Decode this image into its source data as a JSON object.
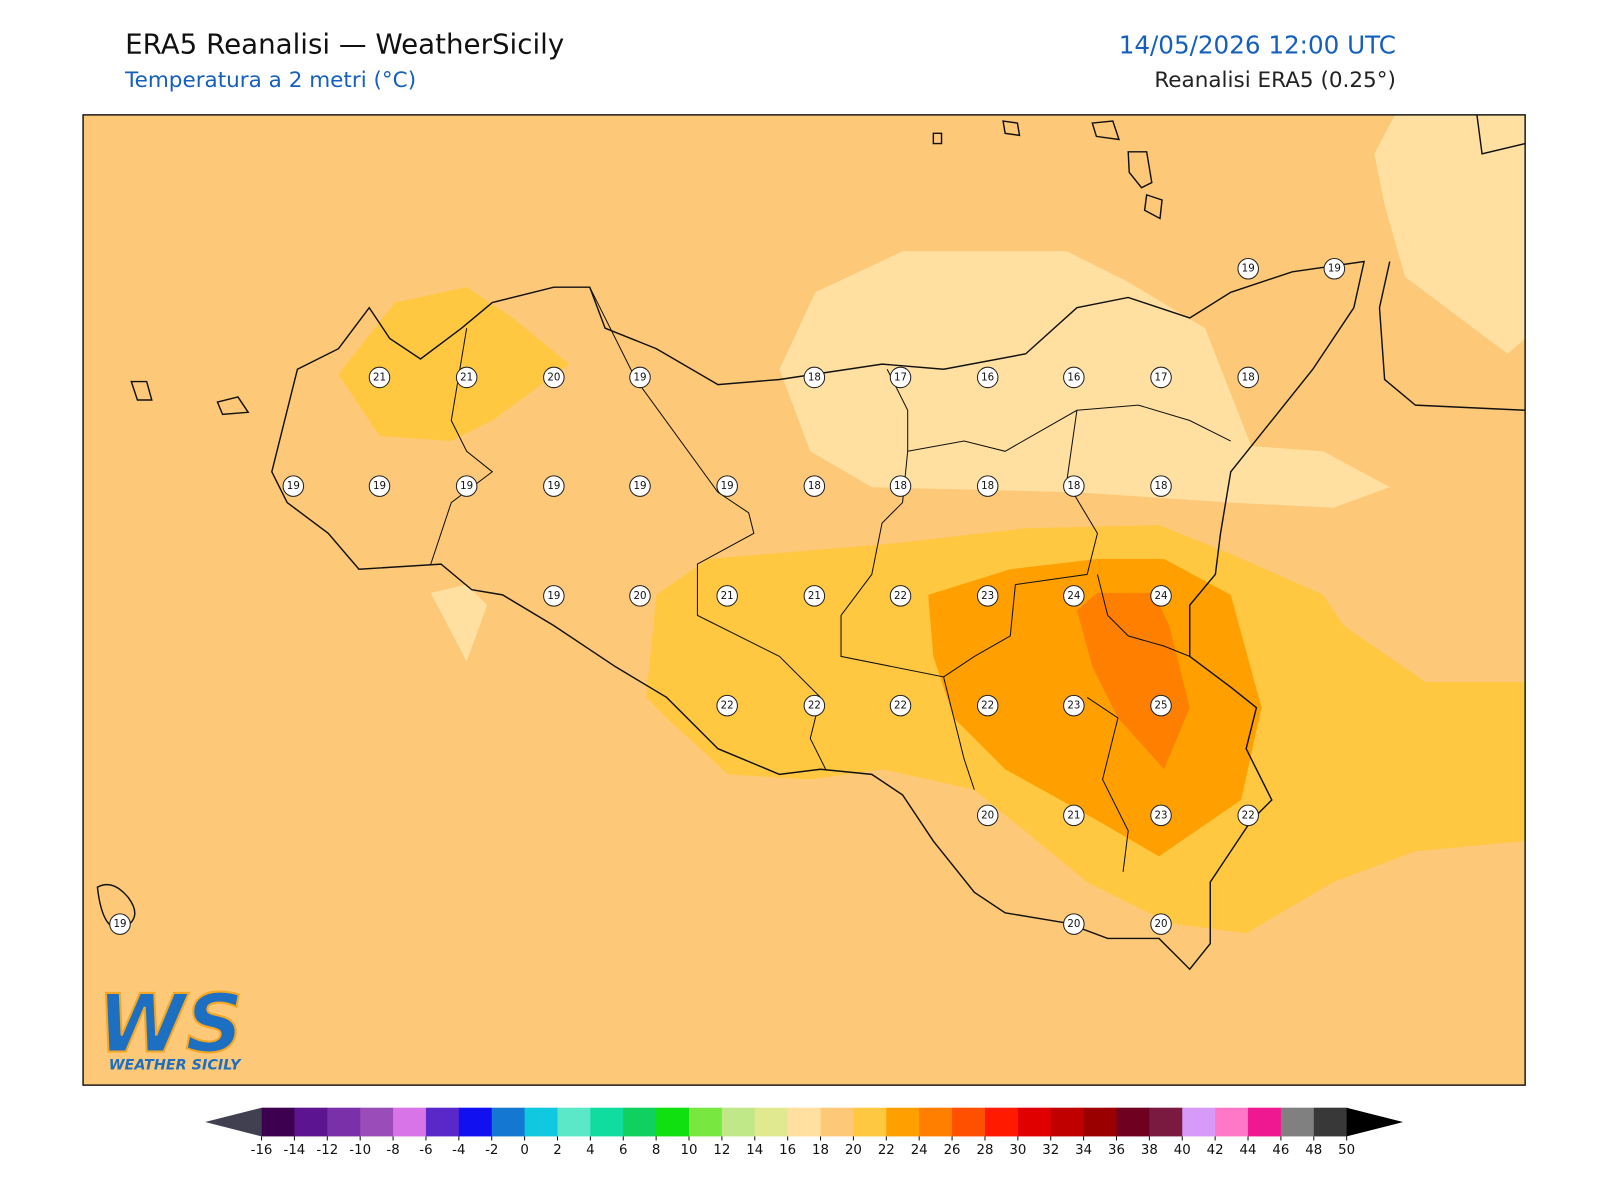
{
  "header": {
    "title": "ERA5 Reanalisi — WeatherSicily",
    "subtitle": "Temperatura a 2 metri (°C)",
    "datetime": "14/05/2026 12:00 UTC",
    "source": "Reanalisi ERA5 (0.25°)"
  },
  "stations": [
    21,
    21,
    20,
    19,
    18,
    17,
    16,
    16,
    17,
    18,
    19,
    19,
    19,
    19,
    19,
    19,
    19,
    19,
    18,
    18,
    18,
    18,
    18,
    19,
    20,
    21,
    21,
    22,
    23,
    24,
    24,
    22,
    22,
    22,
    22,
    23,
    25,
    20,
    21,
    23,
    22,
    19,
    20,
    20
  ],
  "logo": {
    "text": "WS",
    "subtitle": "WEATHER SICILY"
  },
  "colorbar": {
    "ticks": [
      -16,
      -14,
      -12,
      -10,
      -8,
      -6,
      -4,
      -2,
      0,
      2,
      4,
      6,
      8,
      10,
      12,
      14,
      16,
      18,
      20,
      22,
      24,
      26,
      28,
      30,
      32,
      34,
      36,
      38,
      40,
      42,
      44,
      46,
      48,
      50
    ],
    "colors": [
      "#3d0050",
      "#5c1490",
      "#7a30a8",
      "#9a4cb8",
      "#d873e8",
      "#5a28c8",
      "#1010f0",
      "#1478d2",
      "#10c8e0",
      "#5ae8c8",
      "#10dca0",
      "#10d060",
      "#10e010",
      "#78e840",
      "#c0e888",
      "#e0e890",
      "#ffe0a0",
      "#fdc878",
      "#ffc840",
      "#ffa000",
      "#ff7f00",
      "#ff5000",
      "#ff1a00",
      "#e00000",
      "#c00000",
      "#9a0000",
      "#700020",
      "#7a1a40",
      "#d89af8",
      "#ff78c8",
      "#f01890",
      "#808080",
      "#383838"
    ],
    "under_color": "#404050",
    "over_color": "#000000"
  }
}
